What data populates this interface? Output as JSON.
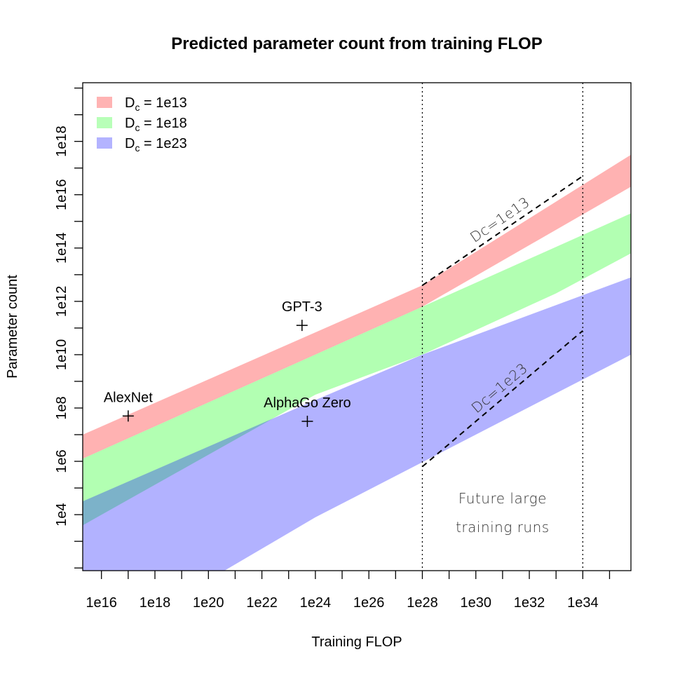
{
  "chart_data": {
    "type": "area",
    "title": "Predicted parameter count from training FLOP",
    "xlabel": "Training FLOP",
    "ylabel": "Parameter count",
    "x_scale": "log10",
    "y_scale": "log10",
    "xlim": [
      "1e15.3",
      "1e35.8"
    ],
    "ylim": [
      "1e1.9",
      "1e20.2"
    ],
    "x_ticks": [
      "1e16",
      "1e18",
      "1e20",
      "1e22",
      "1e24",
      "1e26",
      "1e28",
      "1e30",
      "1e32",
      "1e34"
    ],
    "y_ticks": [
      "1e4",
      "1e6",
      "1e8",
      "1e10",
      "1e12",
      "1e14",
      "1e16",
      "1e18"
    ],
    "legend": {
      "position": "top-left",
      "prefix": "D",
      "subscript": "c",
      "entries": [
        {
          "value": " = 1e13",
          "color": "#ffb3b3"
        },
        {
          "value": " = 1e18",
          "color": "#b8ffb8"
        },
        {
          "value": " = 1e23",
          "color": "#b3b3ff"
        }
      ]
    },
    "series": [
      {
        "color": "#ff0000",
        "upper": [
          [
            "1e15.3",
            "1e7.0"
          ],
          [
            "1e28",
            "1e12.6"
          ],
          [
            "1e35.8",
            "1e17.5"
          ]
        ],
        "lower": [
          [
            "1e15.3",
            "1e6.1"
          ],
          [
            "1e28",
            "1e11.8"
          ],
          [
            "1e35.8",
            "1e16.3"
          ]
        ]
      },
      {
        "color": "#00ff00",
        "upper": [
          [
            "1e15.3",
            "1e6.1"
          ],
          [
            "1e28",
            "1e11.8"
          ],
          [
            "1e35.8",
            "1e15.3"
          ]
        ],
        "lower": [
          [
            "1e15.3",
            "1e3.6"
          ],
          [
            "1e24",
            "1e8.5"
          ],
          [
            "1e28",
            "1e10.0"
          ],
          [
            "1e33",
            "1e12.3"
          ],
          [
            "1e35.8",
            "1e13.8"
          ]
        ]
      },
      {
        "color": "#0000ff",
        "upper": [
          [
            "1e15.3",
            "1e4.5"
          ],
          [
            "1e24",
            "1e8.3"
          ],
          [
            "1e28",
            "1e10.0"
          ],
          [
            "1e35.8",
            "1e12.9"
          ]
        ],
        "lower": [
          [
            "1e15.3",
            "1e1.6"
          ],
          [
            "1e20.6",
            "1e1.9"
          ],
          [
            "1e24",
            "1e3.9"
          ],
          [
            "1e35.8",
            "1e10.0"
          ]
        ]
      }
    ],
    "points": [
      {
        "label": "AlexNet",
        "x": "1e17.0",
        "y": "1e7.7"
      },
      {
        "label": "GPT-3",
        "x": "1e23.5",
        "y": "1e11.1"
      },
      {
        "label": "AlphaGo Zero",
        "x": "1e23.7",
        "y": "1e7.5"
      }
    ],
    "vlines": [
      "1e28",
      "1e34"
    ],
    "dashed_lines": [
      {
        "label": "Dc=1e13",
        "from": [
          "1e28",
          "1e12.6"
        ],
        "to": [
          "1e34",
          "1e16.7"
        ]
      },
      {
        "label": "Dc=1e23",
        "from": [
          "1e28",
          "1e5.8"
        ],
        "to": [
          "1e34",
          "1e10.9"
        ]
      }
    ],
    "annotation": [
      "Future large",
      "training runs"
    ]
  }
}
